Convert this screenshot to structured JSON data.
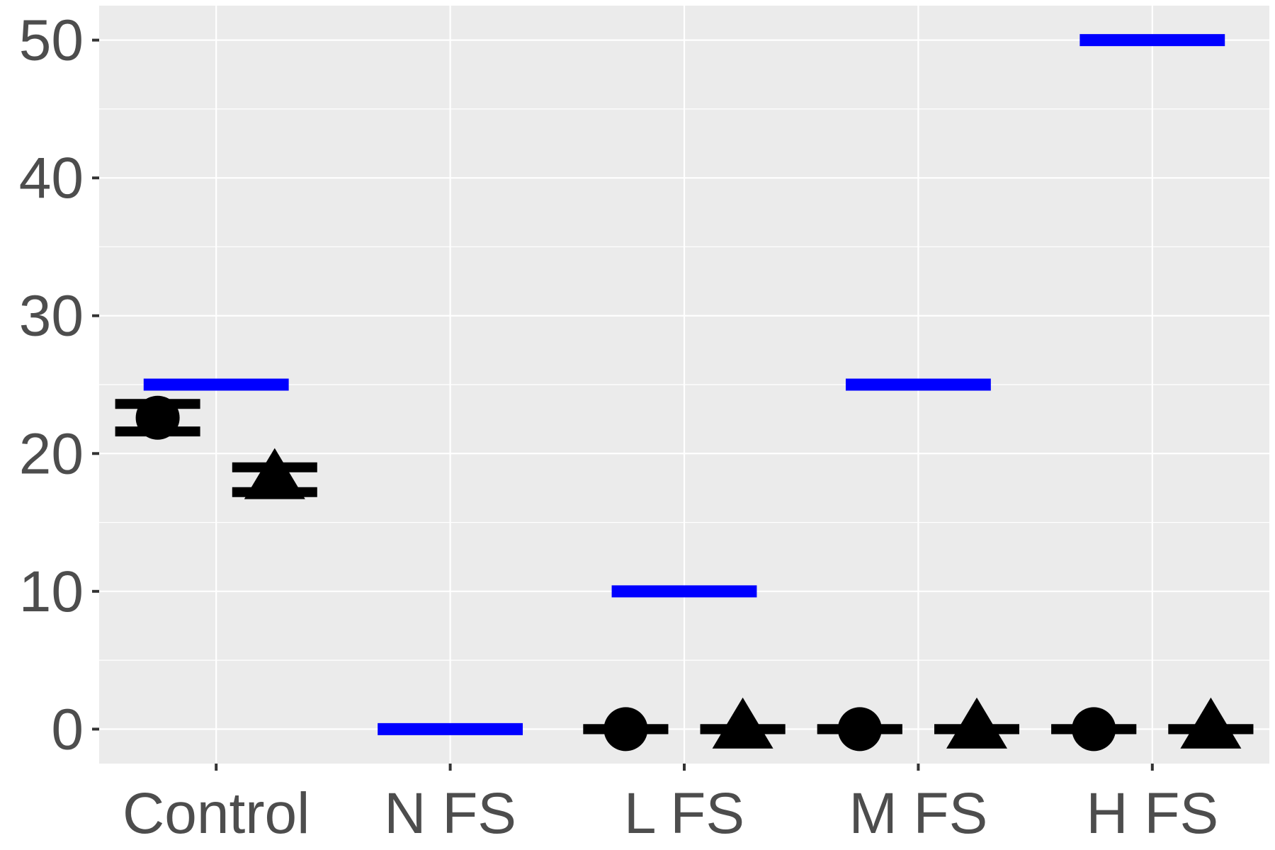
{
  "chart_data": {
    "type": "scatter",
    "categories": [
      "Control",
      "N FS",
      "L FS",
      "M FS",
      "H FS"
    ],
    "ylim": [
      -2.5,
      52.5
    ],
    "yticks": [
      0,
      10,
      20,
      30,
      40,
      50
    ],
    "ytick_labels": [
      "0",
      "10",
      "20",
      "30",
      "40",
      "50"
    ],
    "grid": true,
    "xlabel": "",
    "ylabel": "",
    "title": "",
    "reference": {
      "color": "#0000ff",
      "values": [
        25,
        0,
        10,
        25,
        50
      ]
    },
    "series": [
      {
        "marker": "circle",
        "color": "#000000",
        "offset": -0.25,
        "values": [
          22.6,
          null,
          0,
          0,
          0
        ],
        "error_low": [
          21.6,
          null,
          0,
          0,
          0
        ],
        "error_high": [
          23.6,
          null,
          0,
          0,
          0
        ]
      },
      {
        "marker": "triangle",
        "color": "#000000",
        "offset": 0.25,
        "values": [
          18.1,
          null,
          0,
          0,
          0
        ],
        "error_low": [
          17.2,
          null,
          0,
          0,
          0
        ],
        "error_high": [
          19.0,
          null,
          0,
          0,
          0
        ]
      }
    ]
  }
}
